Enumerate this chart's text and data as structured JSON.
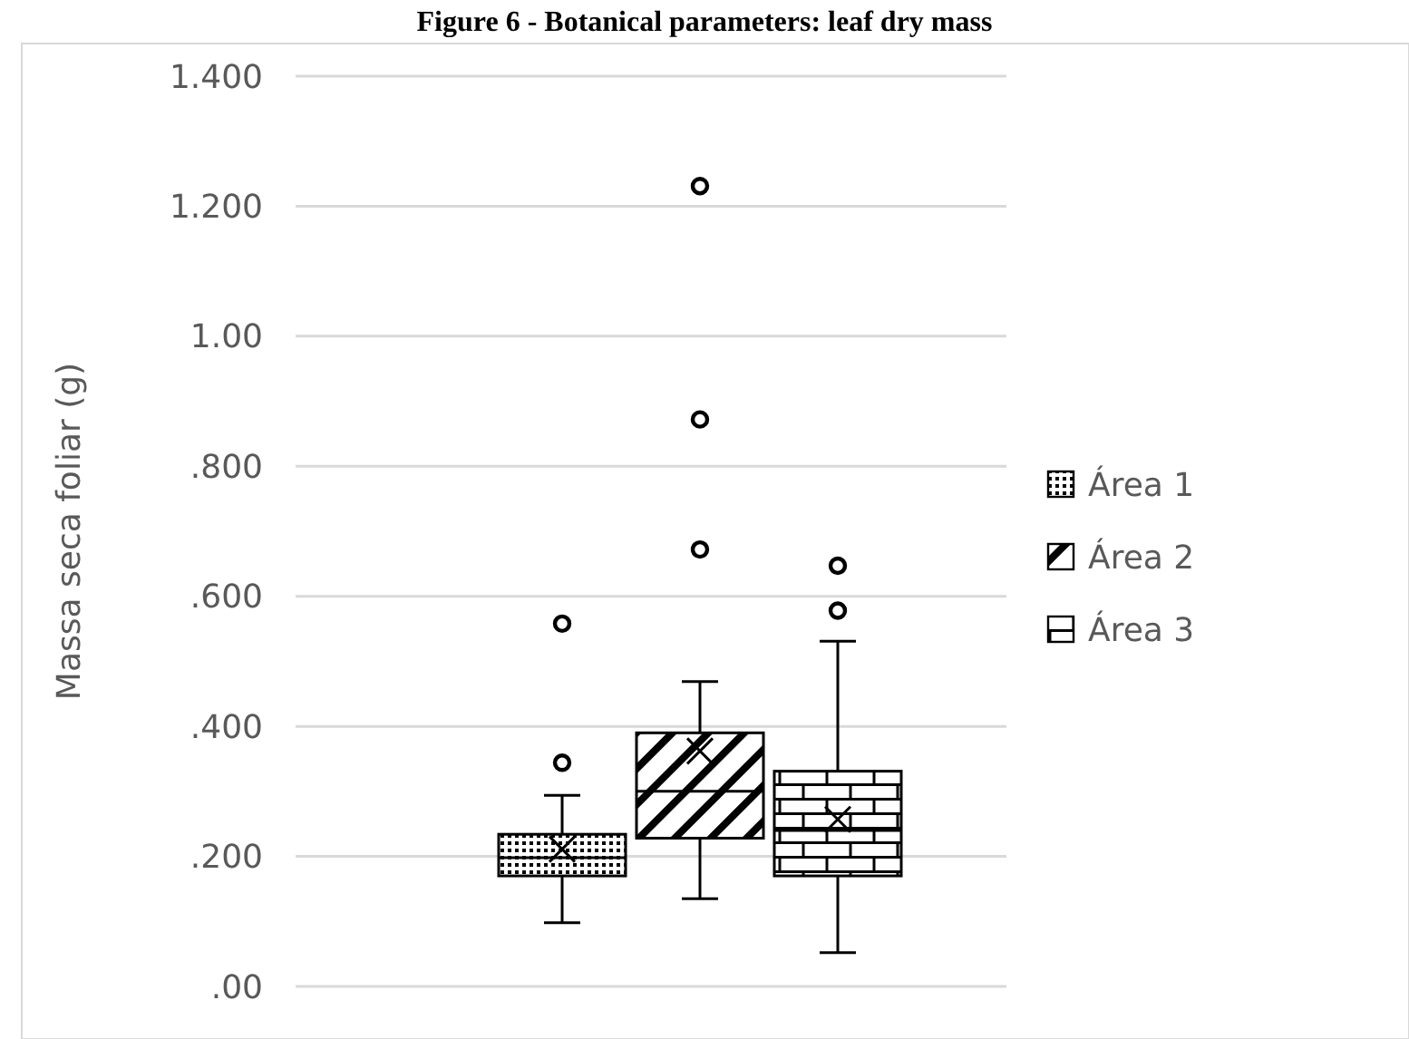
{
  "chart_data": {
    "type": "box",
    "title": "Figure 6 - Botanical parameters: leaf dry mass",
    "ylabel": "Massa seca foliar (g)",
    "categories": [
      null
    ],
    "series": [
      {
        "name": "Área 1",
        "color": "#000000",
        "boxes": [
          {
            "low": 0.098,
            "q1": 0.17,
            "median": 0.198,
            "q3": 0.234,
            "high": 0.294,
            "mean": 0.211,
            "outliers": [
              0.344,
              0.558
            ]
          }
        ]
      },
      {
        "name": "Área 2",
        "color": "#000000",
        "boxes": [
          {
            "low": 0.135,
            "q1": 0.228,
            "median": 0.3,
            "q3": 0.39,
            "high": 0.469,
            "mean": 0.362,
            "outliers": [
              0.672,
              0.872,
              1.231
            ]
          }
        ]
      },
      {
        "name": "Área 3",
        "color": "#000000",
        "boxes": [
          {
            "low": 0.052,
            "q1": 0.17,
            "median": 0.24,
            "q3": 0.331,
            "high": 0.531,
            "mean": 0.257,
            "outliers": [
              0.578,
              0.647
            ]
          }
        ]
      }
    ],
    "ylim": [
      0,
      1.4
    ],
    "yticks": [
      {
        "value": 0,
        "label": ".00"
      },
      {
        "value": 0.2,
        "label": ".200"
      },
      {
        "value": 0.4,
        "label": ".400"
      },
      {
        "value": 0.6,
        "label": ".600"
      },
      {
        "value": 0.8,
        "label": ".800"
      },
      {
        "value": 1.0,
        "label": "1.00"
      },
      {
        "value": 1.2,
        "label": "1.200"
      },
      {
        "value": 1.4,
        "label": "1.400"
      }
    ],
    "grid": "y",
    "legend": "right",
    "marker": "circle"
  }
}
